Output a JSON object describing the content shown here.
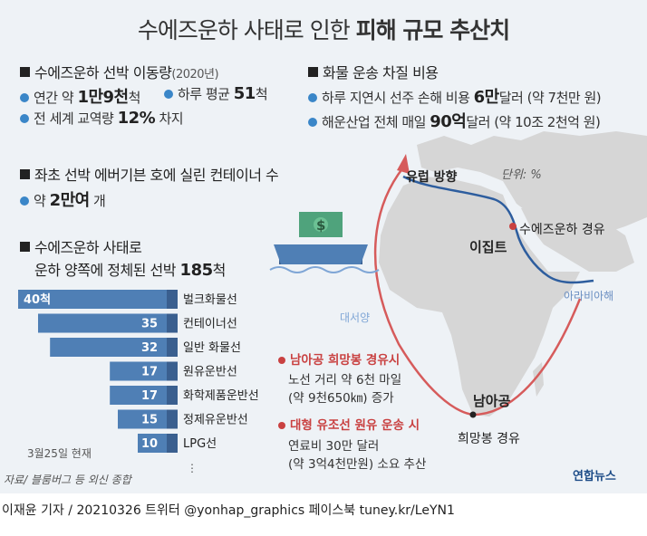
{
  "title_prefix": "수에즈운하 사태로 인한 ",
  "title_bold": "피해 규모 추산치",
  "sec1": {
    "head": "수에즈운하 선박 이동량",
    "sub": "(2020년)",
    "item1_a": "연간 약 ",
    "item1_b": "1만9천",
    "item1_c": "척",
    "item2_a": "하루 평균 ",
    "item2_b": "51",
    "item2_c": "척",
    "item3_a": "전 세계 교역량 ",
    "item3_b": "12%",
    "item3_c": " 차지"
  },
  "sec2": {
    "head": "화물 운송 차질 비용",
    "item1_a": "하루 지연시 선주 손해 비용 ",
    "item1_b": "6만",
    "item1_c": "달러 (약 7천만 원)",
    "item2_a": "해운산업 전체 매일 ",
    "item2_b": "90억",
    "item2_c": "달러 (약 10조 2천억 원)"
  },
  "sec3": {
    "head": "좌초 선박 에버기븐 호에 실린 컨테이너 수",
    "item_a": "약 ",
    "item_b": "2만여",
    "item_c": " 개"
  },
  "sec4": {
    "head_line1": "수에즈운하 사태로",
    "head_line2_a": "운하 양쪽에 정체된 선박 ",
    "head_line2_b": "185",
    "head_line2_c": "척"
  },
  "unit": "단위: %",
  "date_note": "3월25일 현재",
  "ellipsis": "⋮",
  "source": "자료/ 블룸버그 등 외신 종합",
  "map": {
    "europe": "유럽 방향",
    "egypt": "이집트",
    "suez": "수에즈운하 경유",
    "arabian_sea": "아라비아해",
    "atlantic": "대서양",
    "south_africa": "남아공",
    "cape": "희망봉 경유",
    "cape_route_head": "남아공 희망봉 경유시",
    "cape_route_1": "노선 거리 약 6천 마일",
    "cape_route_2": "(약 9천650㎞) 증가",
    "tanker_head": "대형 유조선 원유 운송 시",
    "tanker_1": "연료비 30만 달러",
    "tanker_2": "(약 3억4천만원) 소요 추산"
  },
  "footer": "이재윤 기자 / 20210326   트위터 @yonhap_graphics  페이스북 tuney.kr/LeYN1",
  "logo": "연합뉴스",
  "colors": {
    "bar": "#4f7fb5",
    "bar_dark": "#3a5f8f",
    "accent_red": "#c94141",
    "dot_blue": "#3a86c8",
    "land": "#d9d9d9",
    "suez_route": "#2d5d9e"
  },
  "chart_data": {
    "type": "bar",
    "orientation": "horizontal",
    "categories": [
      "벌크화물선",
      "컨테이너선",
      "일반 화물선",
      "원유운반선",
      "화학제품운반선",
      "정제유운반선",
      "LPG선"
    ],
    "values": [
      40,
      35,
      32,
      17,
      17,
      15,
      10
    ],
    "value_labels": [
      "40척",
      "35",
      "32",
      "17",
      "17",
      "15",
      "10"
    ],
    "xlim": [
      0,
      40
    ]
  }
}
